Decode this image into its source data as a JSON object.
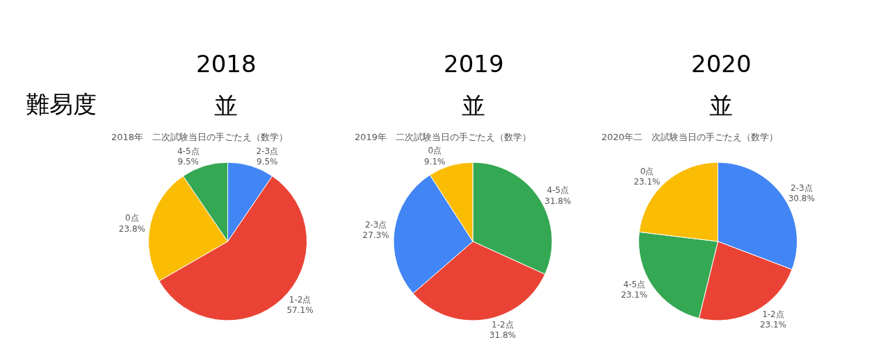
{
  "chart_data": [
    {
      "type": "pie",
      "title": "2018年　二次試験当日の手ごたえ（数学）",
      "annotations": [
        "2018",
        "並",
        "難易度"
      ],
      "categories": [
        "2-3点",
        "1-2点",
        "0点",
        "4-5点"
      ],
      "values": [
        9.5,
        57.1,
        23.8,
        9.5
      ],
      "value_labels": [
        "9.5%",
        "57.1%",
        "23.8%",
        "9.5%"
      ],
      "colors": [
        "#4285f4",
        "#ea4335",
        "#fbbc04",
        "#34a853"
      ],
      "legend": false
    },
    {
      "type": "pie",
      "title": "2019年　二次試験当日の手ごたえ（数学）",
      "annotations": [
        "2019",
        "並"
      ],
      "categories": [
        "4-5点",
        "1-2点",
        "2-3点",
        "0点"
      ],
      "values": [
        31.8,
        31.8,
        27.3,
        9.1
      ],
      "value_labels": [
        "31.8%",
        "31.8%",
        "27.3%",
        "9.1%"
      ],
      "colors": [
        "#34a853",
        "#ea4335",
        "#4285f4",
        "#fbbc04"
      ],
      "legend": false
    },
    {
      "type": "pie",
      "title": "2020年二　次試験当日の手ごたえ（数学）",
      "annotations": [
        "2020",
        "並"
      ],
      "categories": [
        "2-3点",
        "1-2点",
        "4-5点",
        "0点"
      ],
      "values": [
        30.8,
        23.1,
        23.1,
        23.1
      ],
      "value_labels": [
        "30.8%",
        "23.1%",
        "23.1%",
        "23.1%"
      ],
      "colors": [
        "#4285f4",
        "#ea4335",
        "#34a853",
        "#fbbc04"
      ],
      "legend": false
    }
  ]
}
